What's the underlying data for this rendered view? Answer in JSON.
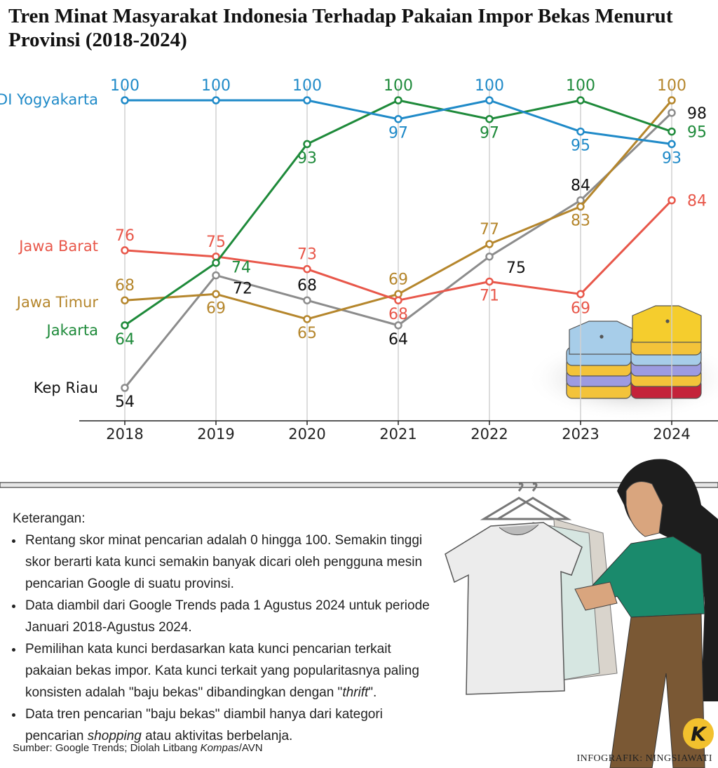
{
  "chart_data": {
    "type": "line",
    "title": "Tren Minat Masyarakat Indonesia Terhadap Pakaian Impor Bekas Menurut Provinsi (2018-2024)",
    "categories": [
      "2018",
      "2019",
      "2020",
      "2021",
      "2022",
      "2023",
      "2024"
    ],
    "series": [
      {
        "name": "Kep Riau",
        "color": "#8c8c8c",
        "label_color": "#111111",
        "values": [
          54,
          72,
          68,
          64,
          75,
          84,
          98
        ]
      },
      {
        "name": "Jawa Timur",
        "color": "#b5862c",
        "values": [
          68,
          69,
          65,
          69,
          77,
          83,
          100
        ]
      },
      {
        "name": "Jawa Barat",
        "color": "#e8574a",
        "values": [
          76,
          75,
          73,
          68,
          71,
          69,
          84
        ]
      },
      {
        "name": "Jakarta",
        "color": "#1e8a3a",
        "values": [
          64,
          74,
          93,
          100,
          97,
          100,
          95
        ]
      },
      {
        "name": "DI Yogyakarta",
        "color": "#1f8ac8",
        "values": [
          100,
          100,
          100,
          97,
          100,
          95,
          93
        ]
      }
    ],
    "grid": true
  },
  "notes": {
    "heading": "Keterangan:",
    "items": [
      [
        "Rentang skor minat pencarian adalah 0 hingga 100. Semakin tinggi skor berarti kata kunci semakin banyak dicari oleh pengguna mesin pencarian Google di suatu provinsi."
      ],
      [
        "Data diambil dari Google Trends pada 1 Agustus 2024 untuk periode Januari 2018-Agustus 2024."
      ],
      [
        "Pemilihan kata kunci berdasarkan kata kunci pencarian terkait pakaian bekas impor. Kata kunci terkait yang popularitasnya paling konsisten adalah \"baju bekas\" dibandingkan dengan \"",
        "thrift",
        "\"."
      ],
      [
        "Data tren pencarian \"baju bekas\" diambil hanya dari kategori pencarian ",
        "shopping",
        " atau aktivitas berbelanja."
      ]
    ]
  },
  "source": [
    "Sumber: Google Trends; Diolah Litbang ",
    "Kompas",
    "/AVN"
  ],
  "credit": "INFOGRAFIK: NINGSIAWATI",
  "logo": "K"
}
